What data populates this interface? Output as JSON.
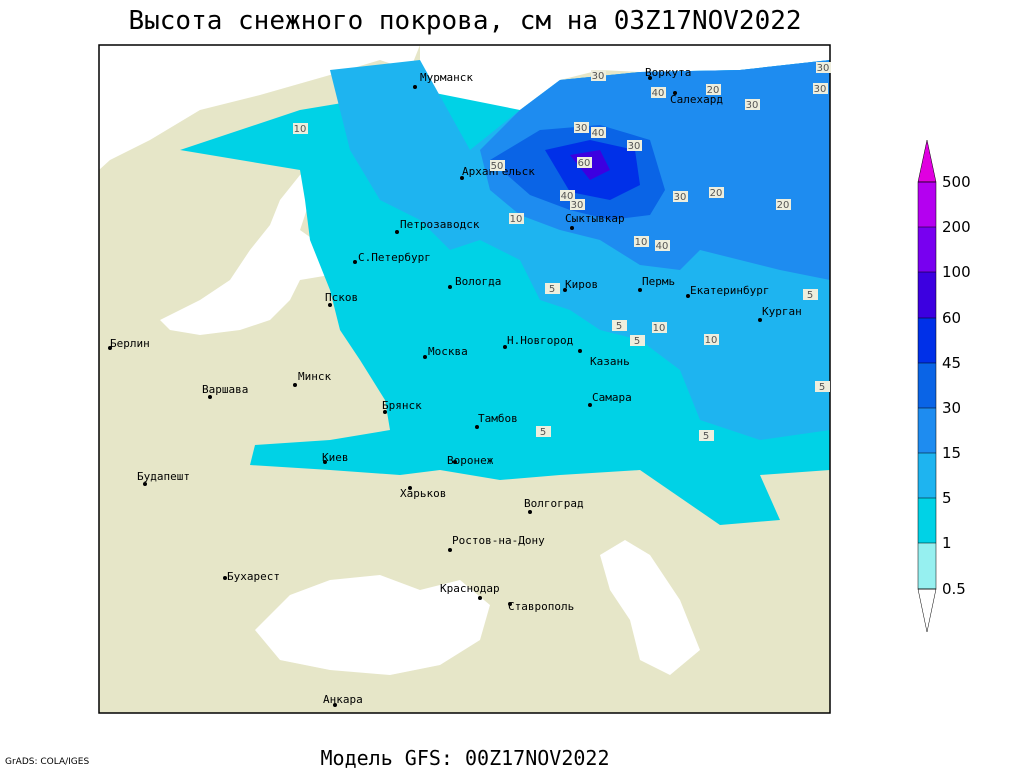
{
  "title": "Высота снежного покрова, см на 03Z17NOV2022",
  "footer": "Модель GFS: 00Z17NOV2022",
  "credit": "GrADS: COLA/IGES",
  "cities": [
    "Мурманск",
    "Воркута",
    "Салехард",
    "Архангельск",
    "Сыктывкар",
    "Петрозаводск",
    "С.Петербург",
    "Вологда",
    "Киров",
    "Пермь",
    "Екатеринбург",
    "Курган",
    "Псков",
    "Н.Новгород",
    "Москва",
    "Казань",
    "Берлин",
    "Минск",
    "Варшава",
    "Самара",
    "Брянск",
    "Тамбов",
    "Киев",
    "Воронеж",
    "Будапешт",
    "Харьков",
    "Волгоград",
    "Ростов-на-Дону",
    "Бухарест",
    "Краснодар",
    "Ставрополь",
    "Анкара"
  ],
  "contour_labels": [
    "30",
    "40",
    "20",
    "30",
    "10",
    "30",
    "40",
    "60",
    "30",
    "50",
    "40",
    "30",
    "30",
    "20",
    "20",
    "10",
    "10",
    "40",
    "5",
    "5",
    "5",
    "10",
    "10",
    "5",
    "5",
    "5",
    "5",
    "30",
    "30"
  ],
  "colorbar": {
    "levels": [
      500,
      200,
      100,
      60,
      45,
      30,
      15,
      5,
      1,
      0.5
    ]
  }
}
